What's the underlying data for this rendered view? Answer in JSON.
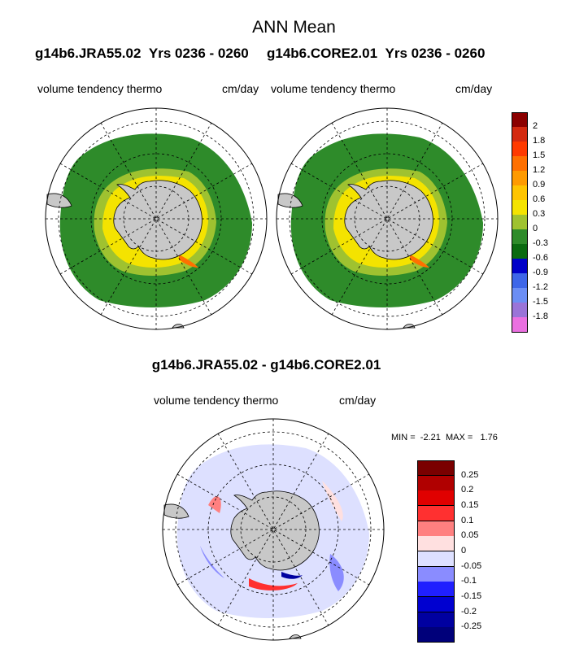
{
  "figure": {
    "title": "ANN Mean",
    "panels": [
      {
        "run": "g14b6.JRA55.02",
        "years": "Yrs 0236 - 0260",
        "variable": "volume tendency thermo",
        "units": "cm/day"
      },
      {
        "run": "g14b6.CORE2.01",
        "years": "Yrs 0236 - 0260",
        "variable": "volume tendency thermo",
        "units": "cm/day"
      }
    ],
    "diff": {
      "title": "g14b6.JRA55.02 - g14b6.CORE2.01",
      "variable": "volume tendency thermo",
      "units": "cm/day",
      "min_label": "MIN =",
      "min": "-2.21",
      "max_label": "MAX =",
      "max": "1.76"
    }
  },
  "colorbars": {
    "main": {
      "labels": [
        "2",
        "1.8",
        "1.5",
        "1.2",
        "0.9",
        "0.6",
        "0.3",
        "0",
        "-0.3",
        "-0.6",
        "-0.9",
        "-1.2",
        "-1.5",
        "-1.8"
      ],
      "colors": [
        "#8b0000",
        "#d42a10",
        "#ff3a00",
        "#ff7000",
        "#ff9a00",
        "#ffc400",
        "#f4e300",
        "#9fc230",
        "#2e8b2a",
        "#0a6a10",
        "#0000c8",
        "#3e66e8",
        "#6c8ef4",
        "#9a74d8",
        "#ea70e0"
      ]
    },
    "diff": {
      "labels": [
        "0.25",
        "0.2",
        "0.15",
        "0.1",
        "0.05",
        "0",
        "-0.05",
        "-0.1",
        "-0.15",
        "-0.2",
        "-0.25"
      ],
      "colors": [
        "#7a0000",
        "#b00000",
        "#e00000",
        "#ff3030",
        "#ff8080",
        "#ffe0e0",
        "#dde0ff",
        "#8a8cff",
        "#2020ff",
        "#0000d0",
        "#0000a0",
        "#00007a"
      ]
    }
  },
  "colors": {
    "land": "#c8c8c8",
    "ocean_green": "#2e8b2a",
    "light_green": "#9fc230",
    "yellow": "#f4e300"
  }
}
